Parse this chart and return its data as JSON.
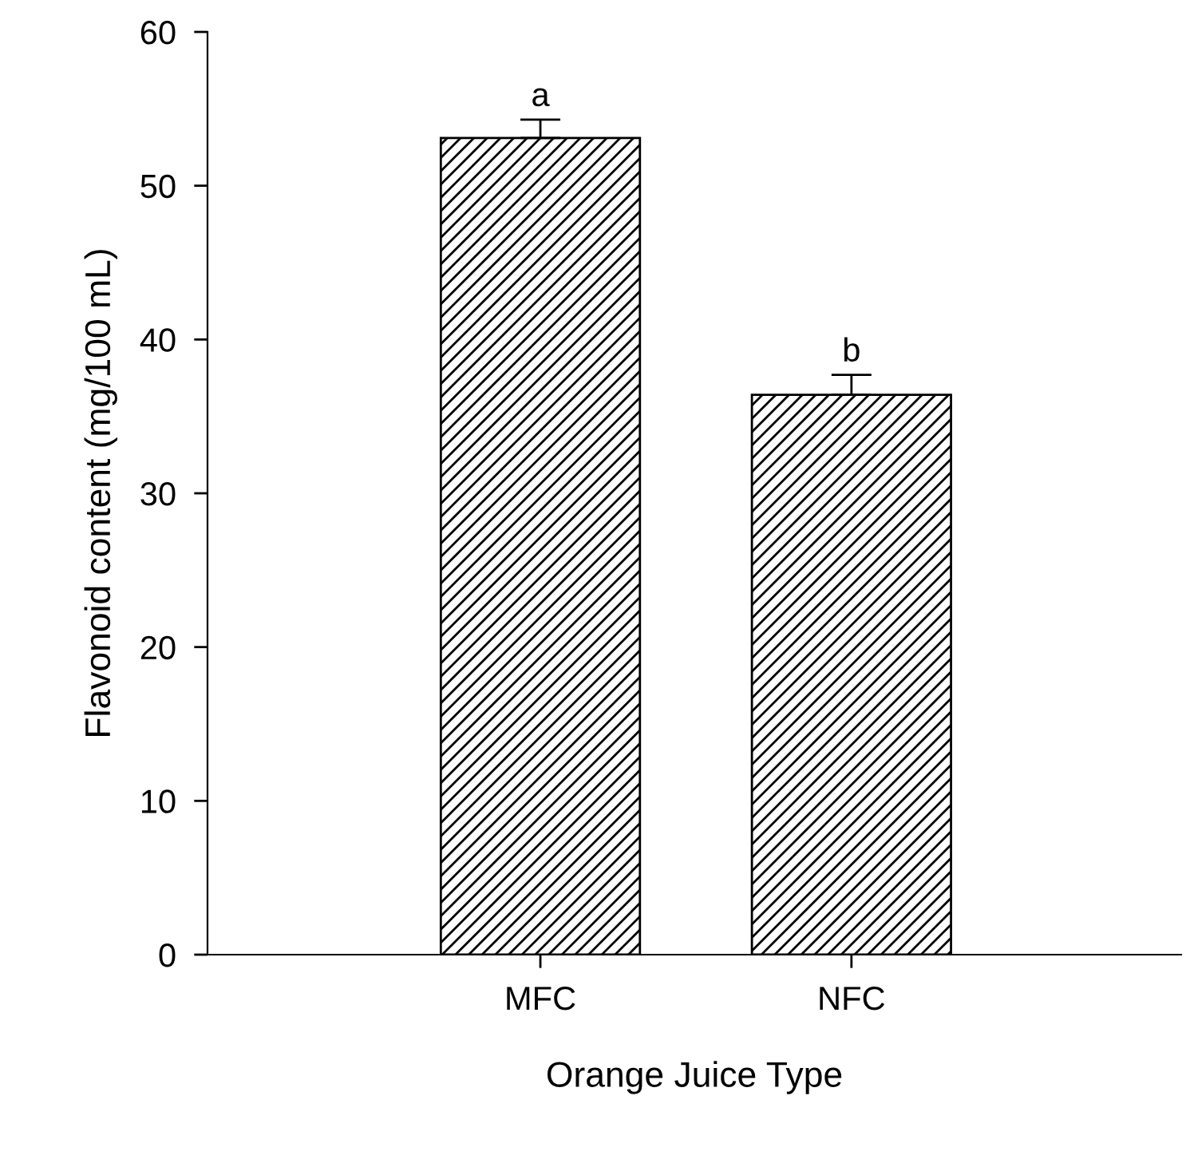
{
  "chart_data": {
    "type": "bar",
    "xlabel": "Orange Juice Type",
    "ylabel": "Flavonoid content (mg/100 mL)",
    "categories": [
      "MFC",
      "NFC"
    ],
    "values": [
      53.1,
      36.4
    ],
    "errors": [
      1.2,
      1.3
    ],
    "color": "#000000",
    "ylim": [
      0,
      60
    ],
    "yticks": [
      0,
      10,
      20,
      30,
      40,
      50,
      60
    ],
    "annotations": [
      {
        "text": "a",
        "x": "MFC",
        "y": 54.3
      },
      {
        "text": "b",
        "x": "NFC",
        "y": 37.7
      }
    ]
  }
}
